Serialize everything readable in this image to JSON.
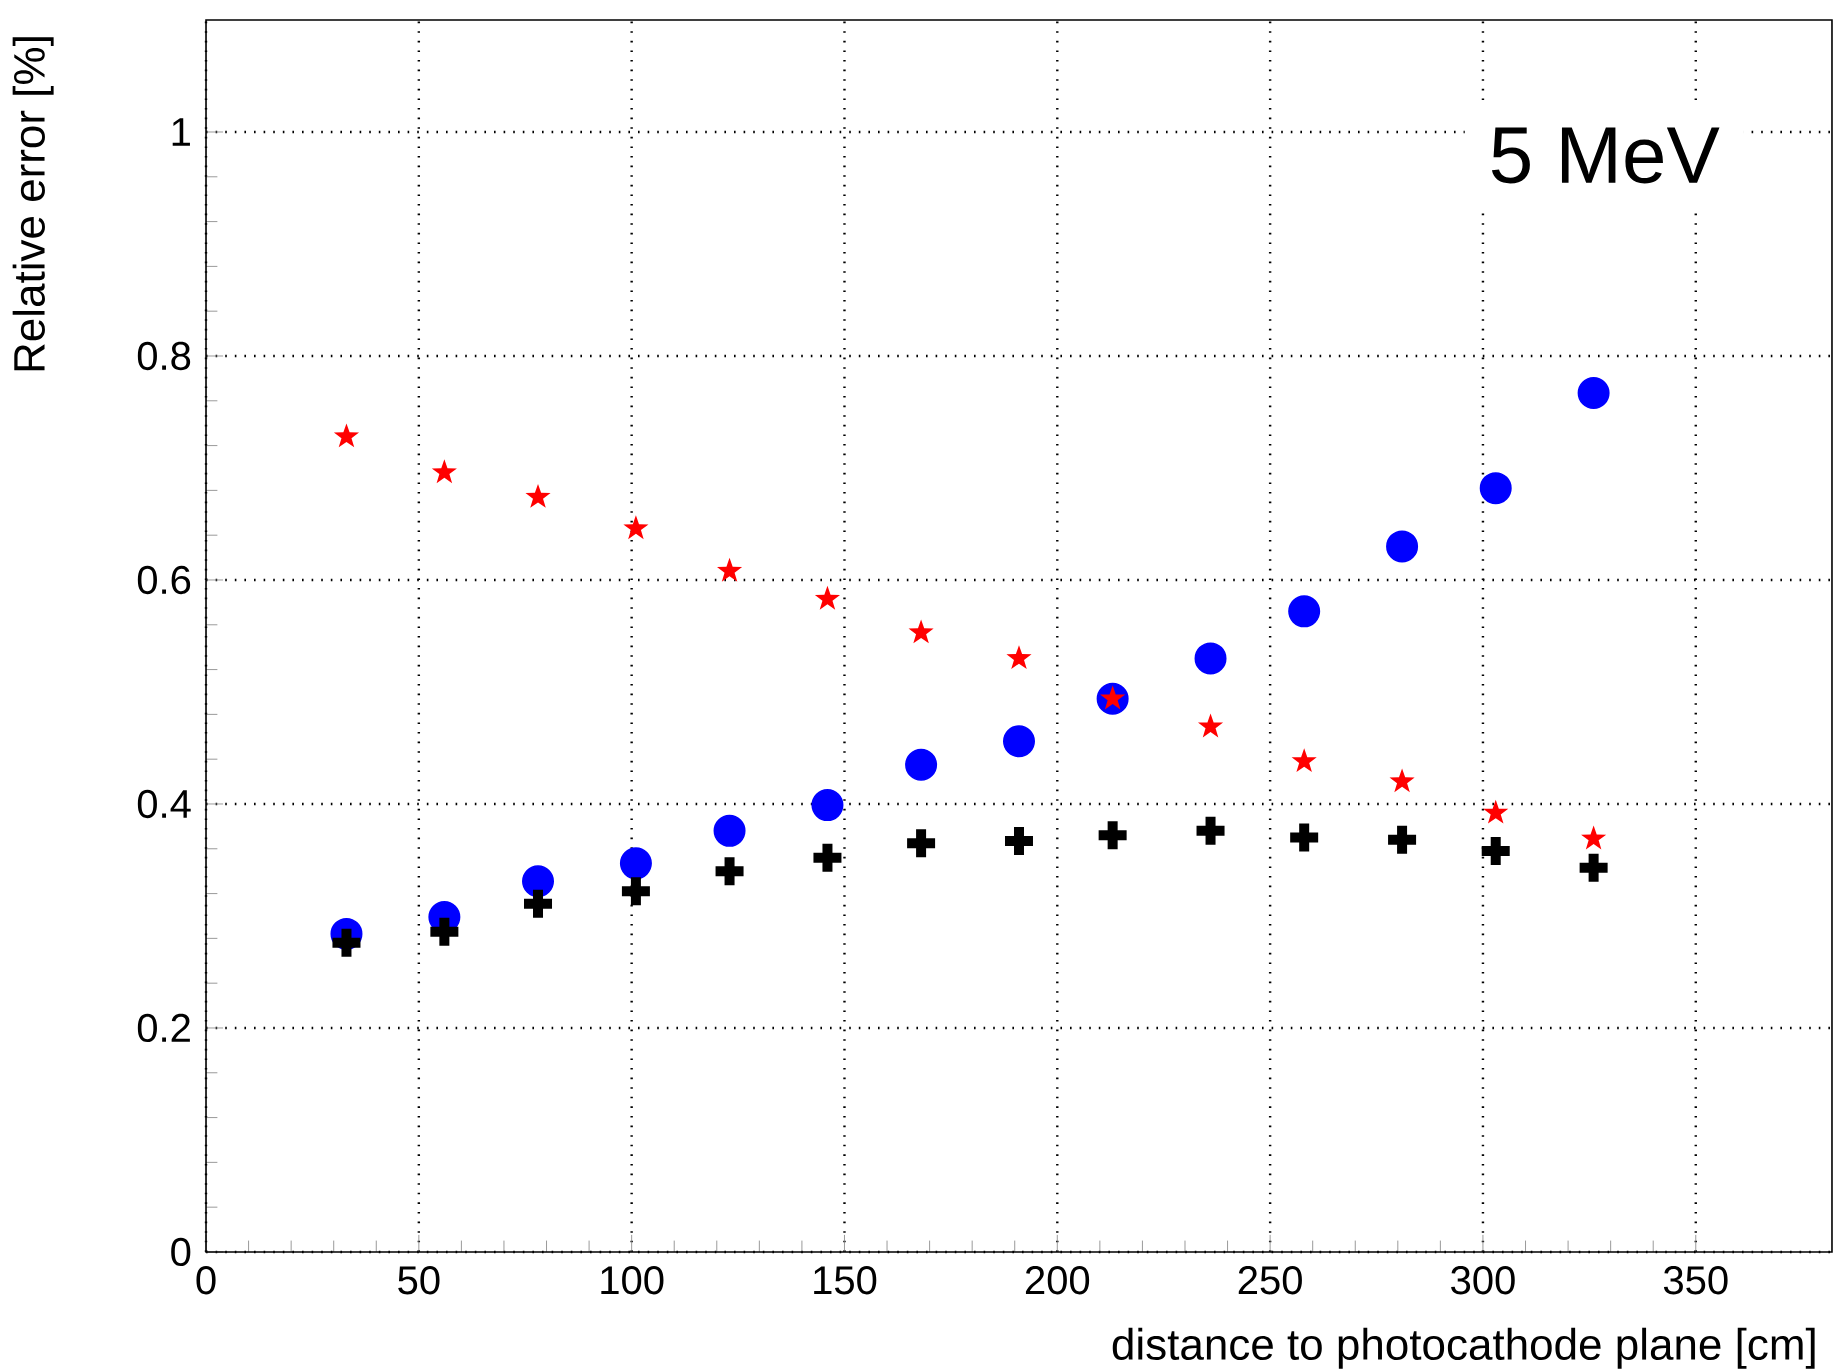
{
  "chart_data": {
    "type": "scatter",
    "xlabel": "distance to photocathode plane [cm]",
    "ylabel": "Relative error [%]",
    "annotations": [
      "5 MeV"
    ],
    "x": [
      33,
      56,
      78,
      101,
      123,
      146,
      168,
      191,
      213,
      236,
      258,
      281,
      303,
      326
    ],
    "series": [
      {
        "color": "#0000ff",
        "marker": "circle",
        "values": [
          0.284,
          0.299,
          0.331,
          0.347,
          0.376,
          0.399,
          0.435,
          0.456,
          0.494,
          0.53,
          0.572,
          0.63,
          0.682,
          0.767
        ]
      },
      {
        "color": "#ff0000",
        "marker": "star",
        "values": [
          0.728,
          0.696,
          0.674,
          0.646,
          0.608,
          0.583,
          0.553,
          0.53,
          0.494,
          0.469,
          0.438,
          0.42,
          0.392,
          0.369
        ]
      },
      {
        "color": "#000000",
        "marker": "cross",
        "values": [
          0.276,
          0.286,
          0.311,
          0.322,
          0.34,
          0.352,
          0.365,
          0.367,
          0.372,
          0.376,
          0.37,
          0.368,
          0.358,
          0.343
        ]
      }
    ],
    "xlim": [
      0,
      382
    ],
    "ylim": [
      0,
      1.1
    ],
    "xticks": [
      0,
      50,
      100,
      150,
      200,
      250,
      300,
      350
    ],
    "yticks": [
      0,
      0.2,
      0.4,
      0.6,
      0.8,
      1
    ],
    "grid": true
  }
}
